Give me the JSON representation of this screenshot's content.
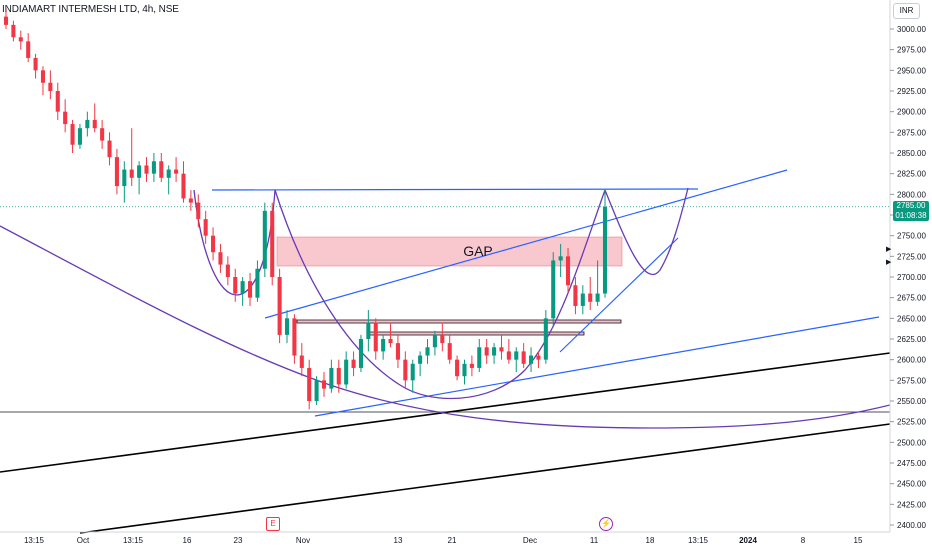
{
  "header": {
    "title": "INDIAMART INTERMESH LTD, 4h, NSE",
    "currency": "INR"
  },
  "price_tag": {
    "price": "2785.00",
    "countdown": "01:08:38",
    "color": "#089981"
  },
  "annotations": {
    "gap_label": "GAP"
  },
  "markers": {
    "earnings": "E",
    "dividend": "⚡"
  },
  "colors": {
    "up": "#089981",
    "down": "#f23645",
    "trendline_blue": "#2962ff",
    "arc_purple": "#673ab7",
    "channel_black": "#000000",
    "gap_fill": "#f7bec6"
  },
  "chart_data": {
    "type": "candlestick",
    "title": "INDIAMART INTERMESH LTD, 4h, NSE",
    "ylim": [
      2387,
      3025
    ],
    "y_ticks": [
      3000,
      2975,
      2950,
      2925,
      2900,
      2875,
      2850,
      2825,
      2800,
      2775,
      2750,
      2725,
      2700,
      2675,
      2650,
      2625,
      2600,
      2575,
      2550,
      2525,
      2500,
      2475,
      2450,
      2425,
      2400
    ],
    "x_ticks": [
      "13:15",
      "Oct",
      "13:15",
      "16",
      "23",
      "Nov",
      "13",
      "21",
      "Dec",
      "11",
      "18",
      "13:15",
      "2024",
      "8",
      "15"
    ],
    "last_price": 2785.0,
    "candles": [
      {
        "o": 3015,
        "h": 3025,
        "l": 3000,
        "c": 3005
      },
      {
        "o": 3005,
        "h": 3010,
        "l": 2985,
        "c": 2990
      },
      {
        "o": 2990,
        "h": 2998,
        "l": 2975,
        "c": 2985
      },
      {
        "o": 2985,
        "h": 2995,
        "l": 2960,
        "c": 2965
      },
      {
        "o": 2965,
        "h": 2970,
        "l": 2940,
        "c": 2950
      },
      {
        "o": 2950,
        "h": 2955,
        "l": 2920,
        "c": 2935
      },
      {
        "o": 2935,
        "h": 2950,
        "l": 2915,
        "c": 2925
      },
      {
        "o": 2925,
        "h": 2935,
        "l": 2890,
        "c": 2900
      },
      {
        "o": 2900,
        "h": 2915,
        "l": 2875,
        "c": 2885
      },
      {
        "o": 2885,
        "h": 2890,
        "l": 2850,
        "c": 2860
      },
      {
        "o": 2860,
        "h": 2885,
        "l": 2855,
        "c": 2880
      },
      {
        "o": 2880,
        "h": 2900,
        "l": 2870,
        "c": 2890
      },
      {
        "o": 2890,
        "h": 2910,
        "l": 2875,
        "c": 2880
      },
      {
        "o": 2880,
        "h": 2890,
        "l": 2855,
        "c": 2865
      },
      {
        "o": 2865,
        "h": 2875,
        "l": 2835,
        "c": 2845
      },
      {
        "o": 2845,
        "h": 2855,
        "l": 2800,
        "c": 2810
      },
      {
        "o": 2810,
        "h": 2840,
        "l": 2790,
        "c": 2830
      },
      {
        "o": 2830,
        "h": 2880,
        "l": 2810,
        "c": 2820
      },
      {
        "o": 2820,
        "h": 2840,
        "l": 2800,
        "c": 2835
      },
      {
        "o": 2835,
        "h": 2845,
        "l": 2815,
        "c": 2825
      },
      {
        "o": 2825,
        "h": 2850,
        "l": 2815,
        "c": 2840
      },
      {
        "o": 2840,
        "h": 2850,
        "l": 2815,
        "c": 2820
      },
      {
        "o": 2820,
        "h": 2835,
        "l": 2800,
        "c": 2830
      },
      {
        "o": 2830,
        "h": 2845,
        "l": 2815,
        "c": 2825
      },
      {
        "o": 2825,
        "h": 2840,
        "l": 2790,
        "c": 2795
      },
      {
        "o": 2795,
        "h": 2805,
        "l": 2780,
        "c": 2790
      },
      {
        "o": 2790,
        "h": 2800,
        "l": 2760,
        "c": 2770
      },
      {
        "o": 2770,
        "h": 2780,
        "l": 2740,
        "c": 2750
      },
      {
        "o": 2750,
        "h": 2760,
        "l": 2720,
        "c": 2730
      },
      {
        "o": 2730,
        "h": 2740,
        "l": 2705,
        "c": 2715
      },
      {
        "o": 2715,
        "h": 2725,
        "l": 2690,
        "c": 2700
      },
      {
        "o": 2700,
        "h": 2710,
        "l": 2670,
        "c": 2680
      },
      {
        "o": 2680,
        "h": 2700,
        "l": 2665,
        "c": 2695
      },
      {
        "o": 2695,
        "h": 2705,
        "l": 2665,
        "c": 2675
      },
      {
        "o": 2675,
        "h": 2720,
        "l": 2670,
        "c": 2710
      },
      {
        "o": 2710,
        "h": 2790,
        "l": 2700,
        "c": 2780
      },
      {
        "o": 2780,
        "h": 2790,
        "l": 2690,
        "c": 2700
      },
      {
        "o": 2700,
        "h": 2710,
        "l": 2620,
        "c": 2630
      },
      {
        "o": 2630,
        "h": 2660,
        "l": 2620,
        "c": 2650
      },
      {
        "o": 2650,
        "h": 2655,
        "l": 2595,
        "c": 2605
      },
      {
        "o": 2605,
        "h": 2620,
        "l": 2580,
        "c": 2590
      },
      {
        "o": 2590,
        "h": 2600,
        "l": 2540,
        "c": 2550
      },
      {
        "o": 2550,
        "h": 2580,
        "l": 2545,
        "c": 2575
      },
      {
        "o": 2575,
        "h": 2585,
        "l": 2555,
        "c": 2565
      },
      {
        "o": 2565,
        "h": 2600,
        "l": 2560,
        "c": 2590
      },
      {
        "o": 2590,
        "h": 2600,
        "l": 2560,
        "c": 2570
      },
      {
        "o": 2570,
        "h": 2610,
        "l": 2565,
        "c": 2600
      },
      {
        "o": 2600,
        "h": 2610,
        "l": 2580,
        "c": 2590
      },
      {
        "o": 2590,
        "h": 2630,
        "l": 2585,
        "c": 2625
      },
      {
        "o": 2625,
        "h": 2660,
        "l": 2610,
        "c": 2645
      },
      {
        "o": 2645,
        "h": 2650,
        "l": 2600,
        "c": 2610
      },
      {
        "o": 2610,
        "h": 2630,
        "l": 2600,
        "c": 2625
      },
      {
        "o": 2625,
        "h": 2645,
        "l": 2615,
        "c": 2620
      },
      {
        "o": 2620,
        "h": 2630,
        "l": 2590,
        "c": 2600
      },
      {
        "o": 2600,
        "h": 2610,
        "l": 2565,
        "c": 2575
      },
      {
        "o": 2575,
        "h": 2600,
        "l": 2560,
        "c": 2595
      },
      {
        "o": 2595,
        "h": 2610,
        "l": 2580,
        "c": 2605
      },
      {
        "o": 2605,
        "h": 2625,
        "l": 2595,
        "c": 2615
      },
      {
        "o": 2615,
        "h": 2635,
        "l": 2605,
        "c": 2630
      },
      {
        "o": 2630,
        "h": 2645,
        "l": 2610,
        "c": 2620
      },
      {
        "o": 2620,
        "h": 2630,
        "l": 2595,
        "c": 2600
      },
      {
        "o": 2600,
        "h": 2605,
        "l": 2575,
        "c": 2580
      },
      {
        "o": 2580,
        "h": 2600,
        "l": 2570,
        "c": 2595
      },
      {
        "o": 2595,
        "h": 2605,
        "l": 2580,
        "c": 2590
      },
      {
        "o": 2590,
        "h": 2625,
        "l": 2585,
        "c": 2615
      },
      {
        "o": 2615,
        "h": 2625,
        "l": 2595,
        "c": 2605
      },
      {
        "o": 2605,
        "h": 2620,
        "l": 2595,
        "c": 2615
      },
      {
        "o": 2615,
        "h": 2630,
        "l": 2600,
        "c": 2610
      },
      {
        "o": 2610,
        "h": 2625,
        "l": 2595,
        "c": 2600
      },
      {
        "o": 2600,
        "h": 2615,
        "l": 2585,
        "c": 2610
      },
      {
        "o": 2610,
        "h": 2620,
        "l": 2590,
        "c": 2595
      },
      {
        "o": 2595,
        "h": 2615,
        "l": 2585,
        "c": 2605
      },
      {
        "o": 2605,
        "h": 2610,
        "l": 2590,
        "c": 2600
      },
      {
        "o": 2600,
        "h": 2660,
        "l": 2595,
        "c": 2650
      },
      {
        "o": 2650,
        "h": 2730,
        "l": 2640,
        "c": 2720
      },
      {
        "o": 2720,
        "h": 2740,
        "l": 2700,
        "c": 2725
      },
      {
        "o": 2725,
        "h": 2735,
        "l": 2680,
        "c": 2690
      },
      {
        "o": 2690,
        "h": 2700,
        "l": 2655,
        "c": 2665
      },
      {
        "o": 2665,
        "h": 2690,
        "l": 2655,
        "c": 2680
      },
      {
        "o": 2680,
        "h": 2700,
        "l": 2660,
        "c": 2670
      },
      {
        "o": 2670,
        "h": 2720,
        "l": 2665,
        "c": 2680
      },
      {
        "o": 2680,
        "h": 2805,
        "l": 2675,
        "c": 2785
      }
    ]
  }
}
